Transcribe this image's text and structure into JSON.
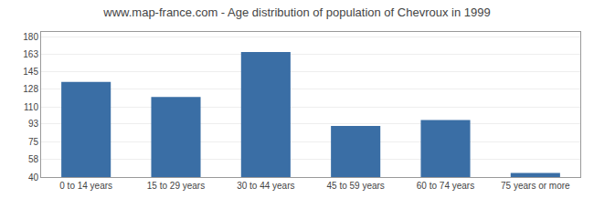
{
  "chart_data": {
    "type": "bar",
    "title": "www.map-france.com - Age distribution of population of Chevroux in 1999",
    "categories": [
      "0 to 14 years",
      "15 to 29 years",
      "30 to 44 years",
      "45 to 59 years",
      "60 to 74 years",
      "75 years or more"
    ],
    "values": [
      135,
      120,
      165,
      91,
      97,
      44
    ],
    "color": "#3a6ea5",
    "ylim": [
      40,
      185
    ],
    "yticks": [
      40,
      58,
      75,
      93,
      110,
      128,
      145,
      163,
      180
    ],
    "grid": true
  }
}
